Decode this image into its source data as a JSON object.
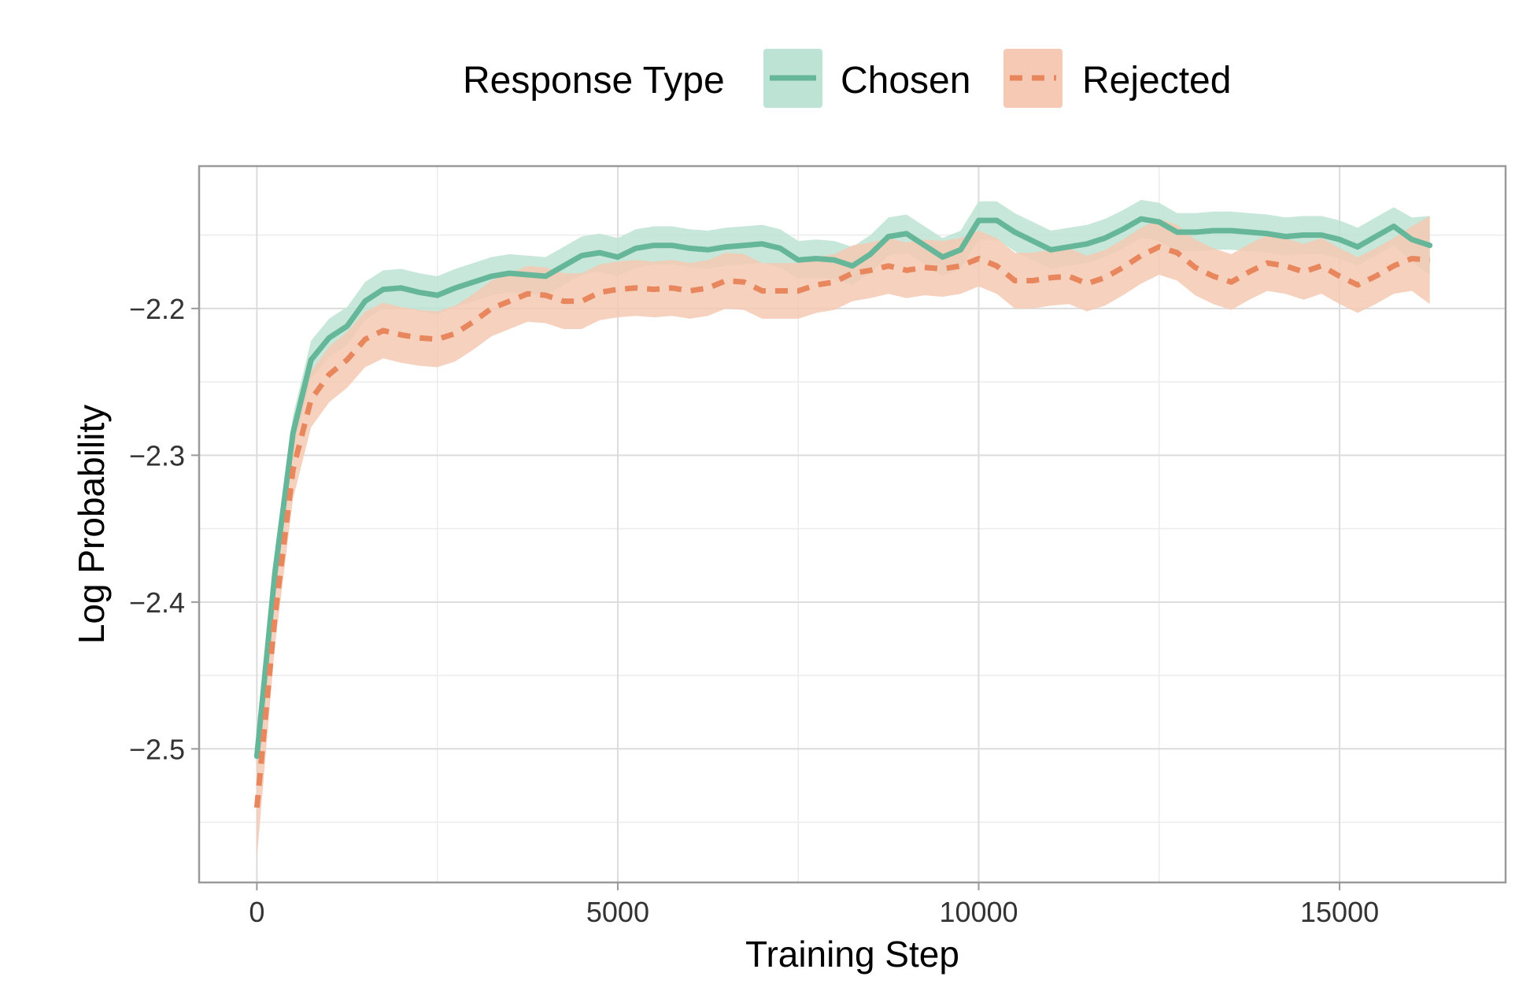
{
  "chart_data": {
    "type": "line",
    "title": "",
    "xlabel": "Training Step",
    "ylabel": "Log Probability",
    "xlim": [
      -800,
      17300
    ],
    "ylim": [
      -2.591,
      -2.103
    ],
    "x_ticks": [
      0,
      5000,
      10000,
      15000
    ],
    "x_tick_labels": [
      "0",
      "5000",
      "10000",
      "15000"
    ],
    "y_ticks": [
      -2.5,
      -2.4,
      -2.3,
      -2.2
    ],
    "y_tick_labels": [
      "−2.5",
      "−2.4",
      "−2.3",
      "−2.2"
    ],
    "grid": true,
    "legend": {
      "title": "Response Type",
      "position": "top"
    },
    "x": [
      0,
      250,
      500,
      750,
      1000,
      1250,
      1500,
      1750,
      2000,
      2250,
      2500,
      2750,
      3000,
      3250,
      3500,
      3750,
      4000,
      4250,
      4500,
      4750,
      5000,
      5250,
      5500,
      5750,
      6000,
      6250,
      6500,
      6750,
      7000,
      7250,
      7500,
      7750,
      8000,
      8250,
      8500,
      8750,
      9000,
      9250,
      9500,
      9750,
      10000,
      10250,
      10500,
      10750,
      11000,
      11250,
      11500,
      11750,
      12000,
      12250,
      12500,
      12750,
      13000,
      13250,
      13500,
      13750,
      14000,
      14250,
      14500,
      14750,
      15000,
      15250,
      15500,
      15750,
      16000,
      16250
    ],
    "series": [
      {
        "name": "Chosen",
        "color": "#66b79a",
        "band_color": "#bde3d4",
        "dash": "solid",
        "values": [
          -2.505,
          -2.38,
          -2.285,
          -2.235,
          -2.22,
          -2.212,
          -2.195,
          -2.187,
          -2.186,
          -2.189,
          -2.191,
          -2.186,
          -2.182,
          -2.178,
          -2.176,
          -2.177,
          -2.178,
          -2.171,
          -2.164,
          -2.162,
          -2.165,
          -2.159,
          -2.157,
          -2.157,
          -2.159,
          -2.16,
          -2.158,
          -2.157,
          -2.156,
          -2.159,
          -2.167,
          -2.166,
          -2.167,
          -2.171,
          -2.163,
          -2.151,
          -2.149,
          -2.157,
          -2.165,
          -2.16,
          -2.14,
          -2.14,
          -2.148,
          -2.154,
          -2.16,
          -2.158,
          -2.156,
          -2.152,
          -2.146,
          -2.139,
          -2.141,
          -2.148,
          -2.148,
          -2.147,
          -2.147,
          -2.148,
          -2.149,
          -2.151,
          -2.15,
          -2.15,
          -2.153,
          -2.158,
          -2.151,
          -2.144,
          -2.153,
          -2.157
        ],
        "lower": [
          -2.515,
          -2.392,
          -2.297,
          -2.248,
          -2.233,
          -2.225,
          -2.208,
          -2.2,
          -2.199,
          -2.202,
          -2.204,
          -2.199,
          -2.195,
          -2.191,
          -2.189,
          -2.19,
          -2.191,
          -2.184,
          -2.177,
          -2.175,
          -2.178,
          -2.172,
          -2.17,
          -2.17,
          -2.172,
          -2.173,
          -2.171,
          -2.17,
          -2.169,
          -2.172,
          -2.18,
          -2.179,
          -2.18,
          -2.184,
          -2.176,
          -2.164,
          -2.162,
          -2.17,
          -2.178,
          -2.173,
          -2.153,
          -2.153,
          -2.161,
          -2.167,
          -2.173,
          -2.171,
          -2.169,
          -2.165,
          -2.159,
          -2.152,
          -2.154,
          -2.161,
          -2.161,
          -2.16,
          -2.16,
          -2.161,
          -2.162,
          -2.164,
          -2.163,
          -2.163,
          -2.166,
          -2.171,
          -2.164,
          -2.157,
          -2.168,
          -2.177
        ],
        "upper": [
          -2.495,
          -2.368,
          -2.273,
          -2.222,
          -2.207,
          -2.199,
          -2.182,
          -2.174,
          -2.173,
          -2.176,
          -2.178,
          -2.173,
          -2.169,
          -2.165,
          -2.163,
          -2.164,
          -2.165,
          -2.158,
          -2.151,
          -2.149,
          -2.152,
          -2.146,
          -2.144,
          -2.144,
          -2.146,
          -2.147,
          -2.145,
          -2.144,
          -2.143,
          -2.146,
          -2.154,
          -2.153,
          -2.154,
          -2.158,
          -2.15,
          -2.138,
          -2.136,
          -2.144,
          -2.152,
          -2.147,
          -2.127,
          -2.127,
          -2.135,
          -2.141,
          -2.147,
          -2.145,
          -2.143,
          -2.139,
          -2.133,
          -2.126,
          -2.128,
          -2.135,
          -2.135,
          -2.134,
          -2.134,
          -2.135,
          -2.136,
          -2.138,
          -2.137,
          -2.137,
          -2.14,
          -2.145,
          -2.138,
          -2.131,
          -2.138,
          -2.137
        ]
      },
      {
        "name": "Rejected",
        "color": "#e8875e",
        "band_color": "#f5c9b3",
        "dash": "dashed",
        "values": [
          -2.54,
          -2.41,
          -2.31,
          -2.262,
          -2.245,
          -2.235,
          -2.221,
          -2.215,
          -2.218,
          -2.22,
          -2.221,
          -2.217,
          -2.209,
          -2.2,
          -2.195,
          -2.19,
          -2.191,
          -2.195,
          -2.195,
          -2.189,
          -2.187,
          -2.186,
          -2.187,
          -2.186,
          -2.188,
          -2.186,
          -2.181,
          -2.182,
          -2.188,
          -2.188,
          -2.188,
          -2.184,
          -2.182,
          -2.176,
          -2.174,
          -2.171,
          -2.174,
          -2.172,
          -2.173,
          -2.171,
          -2.166,
          -2.171,
          -2.181,
          -2.181,
          -2.179,
          -2.178,
          -2.183,
          -2.179,
          -2.172,
          -2.164,
          -2.158,
          -2.162,
          -2.172,
          -2.178,
          -2.182,
          -2.175,
          -2.169,
          -2.171,
          -2.175,
          -2.171,
          -2.178,
          -2.184,
          -2.178,
          -2.171,
          -2.166,
          -2.167
        ],
        "lower": [
          -2.575,
          -2.43,
          -2.33,
          -2.281,
          -2.264,
          -2.254,
          -2.24,
          -2.234,
          -2.237,
          -2.239,
          -2.24,
          -2.236,
          -2.228,
          -2.219,
          -2.214,
          -2.209,
          -2.21,
          -2.214,
          -2.214,
          -2.208,
          -2.206,
          -2.205,
          -2.206,
          -2.205,
          -2.207,
          -2.205,
          -2.2,
          -2.201,
          -2.207,
          -2.207,
          -2.207,
          -2.203,
          -2.201,
          -2.195,
          -2.193,
          -2.19,
          -2.193,
          -2.191,
          -2.192,
          -2.19,
          -2.185,
          -2.19,
          -2.2,
          -2.2,
          -2.198,
          -2.197,
          -2.202,
          -2.198,
          -2.191,
          -2.183,
          -2.177,
          -2.181,
          -2.191,
          -2.197,
          -2.201,
          -2.194,
          -2.188,
          -2.19,
          -2.194,
          -2.19,
          -2.197,
          -2.203,
          -2.197,
          -2.19,
          -2.188,
          -2.197
        ],
        "upper": [
          -2.505,
          -2.39,
          -2.29,
          -2.243,
          -2.226,
          -2.216,
          -2.202,
          -2.196,
          -2.199,
          -2.201,
          -2.202,
          -2.198,
          -2.19,
          -2.181,
          -2.176,
          -2.171,
          -2.172,
          -2.176,
          -2.176,
          -2.17,
          -2.168,
          -2.167,
          -2.168,
          -2.167,
          -2.169,
          -2.167,
          -2.162,
          -2.163,
          -2.169,
          -2.169,
          -2.169,
          -2.165,
          -2.163,
          -2.157,
          -2.155,
          -2.152,
          -2.155,
          -2.153,
          -2.154,
          -2.152,
          -2.147,
          -2.152,
          -2.162,
          -2.162,
          -2.16,
          -2.159,
          -2.164,
          -2.16,
          -2.153,
          -2.145,
          -2.139,
          -2.143,
          -2.153,
          -2.159,
          -2.163,
          -2.156,
          -2.15,
          -2.152,
          -2.156,
          -2.152,
          -2.159,
          -2.165,
          -2.159,
          -2.152,
          -2.144,
          -2.137
        ]
      }
    ]
  }
}
